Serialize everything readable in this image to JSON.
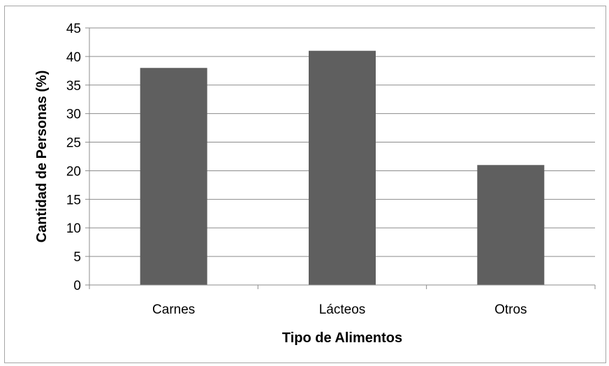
{
  "chart_data": {
    "type": "bar",
    "title": "",
    "xlabel": "Tipo de Alimentos",
    "ylabel": "Cantidad de Personas (%)",
    "categories": [
      "Carnes",
      "Lácteos",
      "Otros"
    ],
    "values": [
      38,
      41,
      21
    ],
    "ylim": [
      0,
      45
    ],
    "yticks": [
      0,
      5,
      10,
      15,
      20,
      25,
      30,
      35,
      40,
      45
    ],
    "grid": true,
    "legend": "none",
    "bar_color": "#5f5f5f",
    "grid_color": "#8c8c8c"
  }
}
